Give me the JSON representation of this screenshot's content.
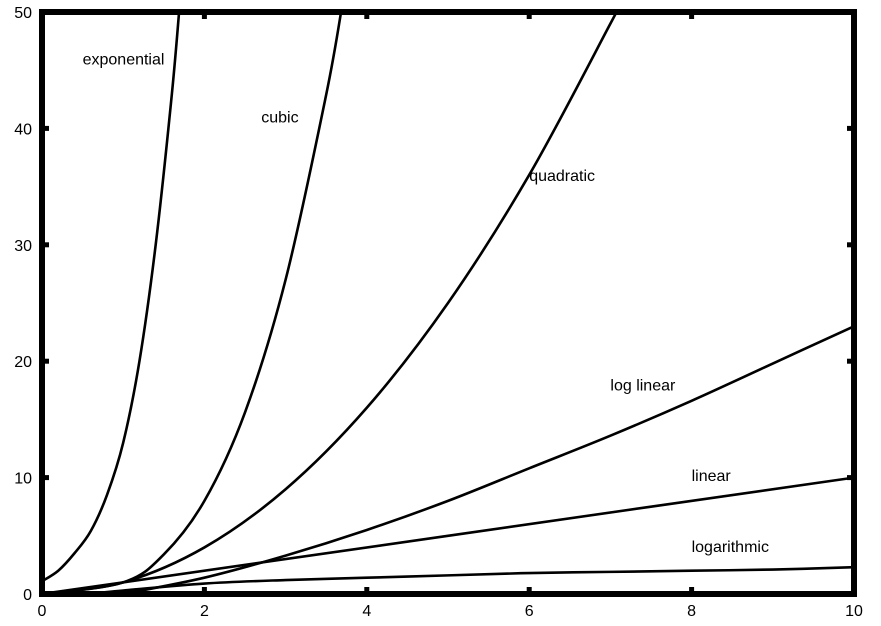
{
  "chart_data": {
    "type": "line",
    "title": "",
    "xlabel": "",
    "ylabel": "",
    "xlim": [
      0,
      10
    ],
    "ylim": [
      0,
      50
    ],
    "x_ticks": [
      "0",
      "2",
      "4",
      "6",
      "8",
      "10"
    ],
    "y_ticks": [
      "0",
      "10",
      "20",
      "30",
      "40",
      "50"
    ],
    "grid": false,
    "series": [
      {
        "name": "exponential",
        "x": [
          0,
          0.2,
          0.4,
          0.6,
          0.8,
          1.0,
          1.2,
          1.4,
          1.6,
          1.7
        ],
        "y": [
          1.1,
          2.0,
          3.5,
          5.4,
          8.5,
          13.0,
          20.0,
          30.0,
          43.0,
          51.0
        ]
      },
      {
        "name": "cubic",
        "x": [
          0,
          1.0,
          1.5,
          2.0,
          2.5,
          3.0,
          3.5,
          3.7
        ],
        "y": [
          0,
          1.0,
          3.4,
          8.0,
          15.6,
          27.0,
          42.9,
          50.7
        ]
      },
      {
        "name": "quadratic",
        "x": [
          0,
          1,
          2,
          3,
          4,
          5,
          6,
          7,
          7.1
        ],
        "y": [
          0,
          1,
          4,
          9,
          16,
          25,
          36,
          49,
          50.4
        ]
      },
      {
        "name": "log linear",
        "x": [
          1,
          2,
          3,
          4,
          5,
          6,
          7,
          8,
          9,
          10
        ],
        "y": [
          0,
          1.4,
          3.3,
          5.5,
          8.0,
          10.8,
          13.6,
          16.6,
          19.8,
          23.0
        ]
      },
      {
        "name": "linear",
        "x": [
          0,
          10
        ],
        "y": [
          0,
          10
        ]
      },
      {
        "name": "logarithmic",
        "x": [
          0.05,
          0.5,
          1,
          2,
          3,
          4,
          5,
          6,
          7,
          8,
          9,
          10
        ],
        "y": [
          0,
          0,
          0.3,
          0.9,
          1.2,
          1.4,
          1.6,
          1.8,
          1.9,
          2.0,
          2.1,
          2.3
        ]
      }
    ],
    "annotations": [
      {
        "text": "exponential",
        "x": 0.5,
        "y": 45.5
      },
      {
        "text": "cubic",
        "x": 2.7,
        "y": 40.5
      },
      {
        "text": "quadratic",
        "x": 6.0,
        "y": 35.5
      },
      {
        "text": "log linear",
        "x": 7.0,
        "y": 17.5
      },
      {
        "text": "linear",
        "x": 8.0,
        "y": 9.7
      },
      {
        "text": "logarithmic",
        "x": 8.0,
        "y": 3.6
      }
    ]
  }
}
